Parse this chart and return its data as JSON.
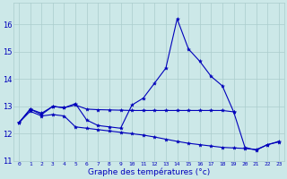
{
  "xlabel": "Graphe des températures (°c)",
  "bg_color": "#cce8e8",
  "line_color": "#0000bb",
  "grid_color": "#aacccc",
  "xlim": [
    -0.5,
    23.5
  ],
  "ylim": [
    11.0,
    16.8
  ],
  "yticks": [
    11,
    12,
    13,
    14,
    15,
    16
  ],
  "xticks": [
    0,
    1,
    2,
    3,
    4,
    5,
    6,
    7,
    8,
    9,
    10,
    11,
    12,
    13,
    14,
    15,
    16,
    17,
    18,
    19,
    20,
    21,
    22,
    23
  ],
  "series": [
    {
      "x": [
        0,
        1,
        2,
        3,
        4,
        5,
        6,
        7,
        8,
        9,
        10,
        11,
        12,
        13,
        14,
        15,
        16,
        17,
        18,
        19,
        20,
        21,
        22,
        23
      ],
      "y": [
        12.4,
        12.9,
        12.7,
        13.0,
        12.95,
        13.1,
        12.5,
        12.3,
        12.25,
        12.2,
        13.05,
        13.3,
        13.85,
        14.4,
        16.2,
        15.1,
        14.65,
        14.1,
        13.75,
        12.8,
        11.5,
        11.4,
        11.6,
        11.7
      ]
    },
    {
      "x": [
        0,
        1,
        2,
        3,
        4,
        5,
        6,
        7,
        8,
        9,
        10,
        11,
        12,
        13,
        14,
        15,
        16,
        17,
        18,
        19
      ],
      "y": [
        12.4,
        12.9,
        12.75,
        13.0,
        12.95,
        13.05,
        12.9,
        12.88,
        12.87,
        12.86,
        12.85,
        12.85,
        12.85,
        12.85,
        12.85,
        12.85,
        12.85,
        12.85,
        12.85,
        12.8
      ]
    },
    {
      "x": [
        0,
        1,
        2,
        3,
        4,
        5,
        6,
        7,
        8,
        9,
        10,
        11,
        12,
        13,
        14,
        15,
        16,
        17,
        18,
        19,
        20,
        21,
        22,
        23
      ],
      "y": [
        12.4,
        12.82,
        12.65,
        12.7,
        12.65,
        12.25,
        12.2,
        12.15,
        12.1,
        12.05,
        12.0,
        11.95,
        11.88,
        11.8,
        11.72,
        11.65,
        11.6,
        11.55,
        11.5,
        11.48,
        11.46,
        11.42,
        11.6,
        11.72
      ]
    }
  ]
}
